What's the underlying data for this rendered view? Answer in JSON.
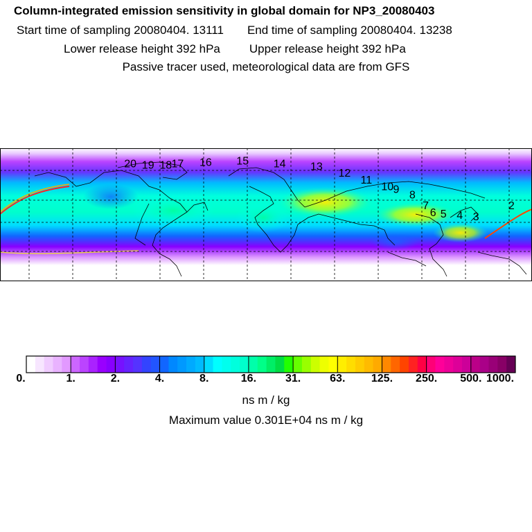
{
  "header": {
    "title": "Column-integrated emission sensitivity in global domain for NP3_20080403",
    "start_label": "Start time of sampling 20080404. 13111",
    "end_label": "End time of sampling 20080404. 13238",
    "lower_label": "Lower release height  392 hPa",
    "upper_label": "Upper release height  392 hPa",
    "note": "Passive tracer used, meteorological data are from GFS"
  },
  "map": {
    "day_markers": [
      {
        "label": "2",
        "lon": 164,
        "lat": 33
      },
      {
        "label": "3",
        "lon": 140,
        "lat": 25
      },
      {
        "label": "4",
        "lon": 129,
        "lat": 26
      },
      {
        "label": "5",
        "lon": 118,
        "lat": 27
      },
      {
        "label": "6",
        "lon": 111,
        "lat": 28
      },
      {
        "label": "7",
        "lon": 106,
        "lat": 33
      },
      {
        "label": "8",
        "lon": 97,
        "lat": 41
      },
      {
        "label": "9",
        "lon": 86,
        "lat": 45
      },
      {
        "label": "10",
        "lon": 78,
        "lat": 47
      },
      {
        "label": "11",
        "lon": 64,
        "lat": 52
      },
      {
        "label": "12",
        "lon": 49,
        "lat": 57
      },
      {
        "label": "13",
        "lon": 30,
        "lat": 62
      },
      {
        "label": "14",
        "lon": 5,
        "lat": 64
      },
      {
        "label": "15",
        "lon": -20,
        "lat": 66
      },
      {
        "label": "16",
        "lon": -45,
        "lat": 65
      },
      {
        "label": "17",
        "lon": -64,
        "lat": 64
      },
      {
        "label": "18",
        "lon": -72,
        "lat": 63
      },
      {
        "label": "19",
        "lon": -84,
        "lat": 63
      },
      {
        "label": "20",
        "lon": -96,
        "lat": 64
      }
    ],
    "marker_color": "#000000"
  },
  "colorbar": {
    "labels": [
      "0.",
      "1.",
      "2.",
      "4.",
      "8.",
      "16.",
      "31.",
      "63.",
      "125.",
      "250.",
      "500.",
      "1000."
    ],
    "colors": [
      "#ffffff",
      "#f7e6ff",
      "#f0ccff",
      "#e9b3ff",
      "#e299ff",
      "#cc66ff",
      "#bb44ff",
      "#aa22ff",
      "#9900ff",
      "#8800ff",
      "#7711ff",
      "#6622ff",
      "#5533ff",
      "#3344ff",
      "#2255ff",
      "#1166ff",
      "#0088ff",
      "#0099ff",
      "#00aaff",
      "#00bbff",
      "#00ddff",
      "#00ffff",
      "#00ffee",
      "#00ffdd",
      "#00ffcc",
      "#00ffaa",
      "#00ff88",
      "#00ee66",
      "#00dd44",
      "#22ff00",
      "#66ff00",
      "#99ff00",
      "#ccff00",
      "#eeff00",
      "#ffff00",
      "#ffee00",
      "#ffdd00",
      "#ffcc00",
      "#ffbb00",
      "#ffaa00",
      "#ff8800",
      "#ff6600",
      "#ff4400",
      "#ff2222",
      "#ff0044",
      "#ff0077",
      "#ff0099",
      "#ee0099",
      "#dd0099",
      "#cc0099",
      "#bb0088",
      "#aa0088",
      "#990077",
      "#880066",
      "#660055"
    ],
    "units": "ns m / kg",
    "maximum_text": "Maximum value  0.301E+04 ns m / kg"
  }
}
